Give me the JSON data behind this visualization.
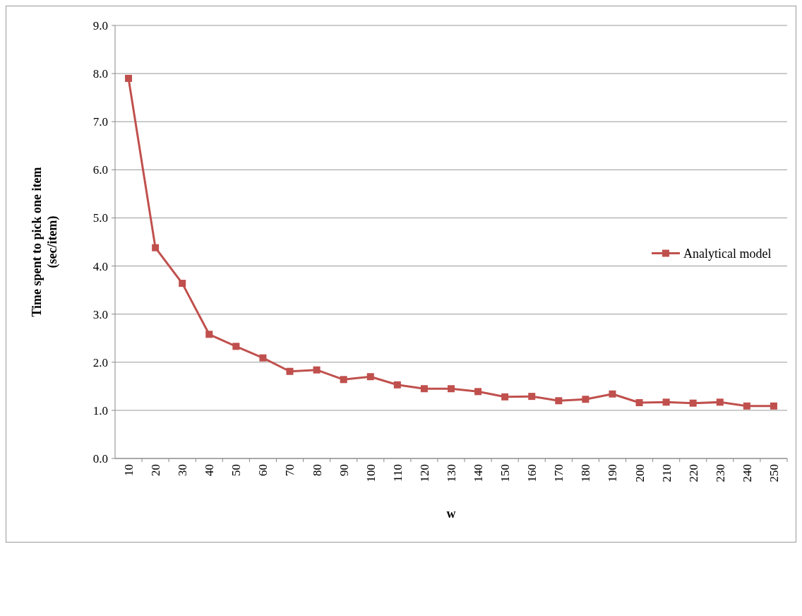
{
  "chart_data": {
    "type": "line",
    "xlabel": "w",
    "ylabel": "Time spent to pick one item\n(sec/item)",
    "categories": [
      "10",
      "20",
      "30",
      "40",
      "50",
      "60",
      "70",
      "80",
      "90",
      "100",
      "110",
      "120",
      "130",
      "140",
      "150",
      "160",
      "170",
      "180",
      "190",
      "200",
      "210",
      "220",
      "230",
      "240",
      "250"
    ],
    "series": [
      {
        "name": "Analytical model",
        "color": "#c0504d",
        "values": [
          7.9,
          4.38,
          3.64,
          2.58,
          2.33,
          2.09,
          1.81,
          1.84,
          1.64,
          1.7,
          1.53,
          1.45,
          1.45,
          1.39,
          1.28,
          1.29,
          1.2,
          1.23,
          1.34,
          1.16,
          1.17,
          1.15,
          1.17,
          1.09,
          1.09
        ]
      }
    ],
    "ylim": [
      0,
      9
    ],
    "yticks": [
      {
        "value": 0,
        "label": "0.0"
      },
      {
        "value": 1,
        "label": "1.0"
      },
      {
        "value": 2,
        "label": "2.0"
      },
      {
        "value": 3,
        "label": "3.0"
      },
      {
        "value": 4,
        "label": "4.0"
      },
      {
        "value": 5,
        "label": "5.0"
      },
      {
        "value": 6,
        "label": "6.0"
      },
      {
        "value": 7,
        "label": "7.0"
      },
      {
        "value": 8,
        "label": "8.0"
      },
      {
        "value": 9,
        "label": "9.0"
      }
    ],
    "grid": "y",
    "legend": "right",
    "marker": "square",
    "line_style": "solid"
  }
}
